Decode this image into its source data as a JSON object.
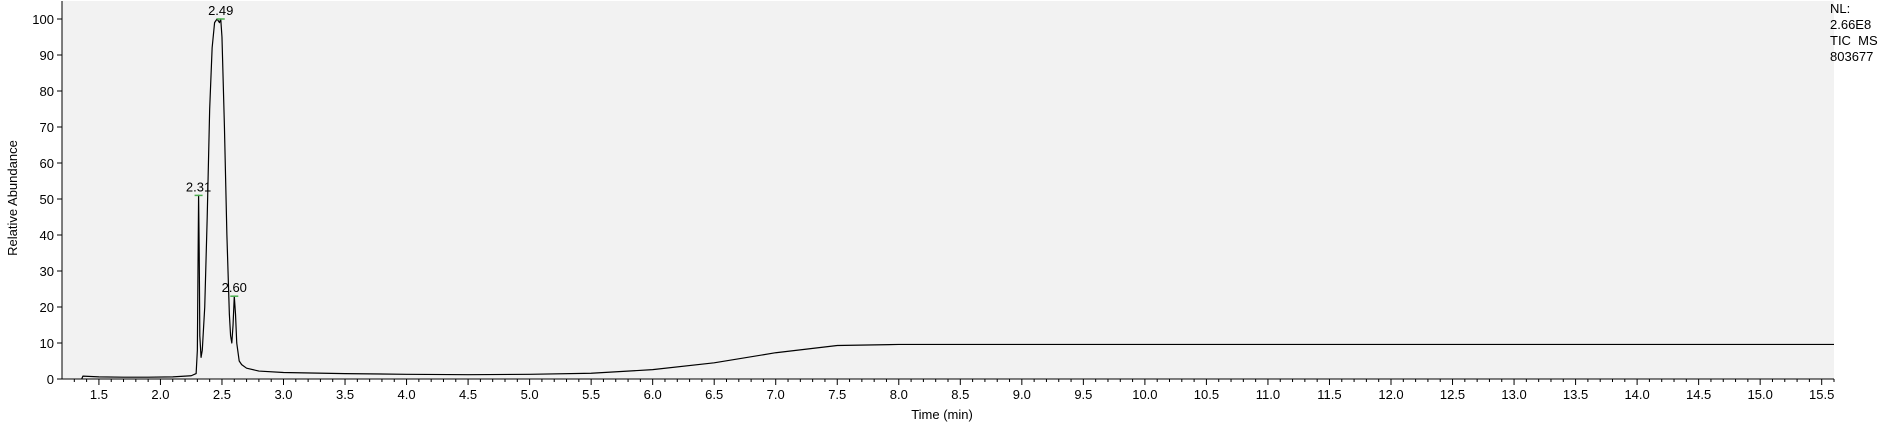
{
  "info": {
    "nl_label": "NL:",
    "nl_value": "2.66E8",
    "scan_filter": "TIC  MS",
    "file_id": "803677"
  },
  "chart_data": {
    "type": "line",
    "title": "",
    "xlabel": "Time (min)",
    "ylabel": "Relative Abundance",
    "xlim": [
      1.2,
      15.6
    ],
    "ylim": [
      0,
      100
    ],
    "grid": false,
    "line_color": "#000000",
    "peak_label_color": "#4caf50",
    "yticks": [
      "0",
      "10",
      "20",
      "30",
      "40",
      "50",
      "60",
      "70",
      "80",
      "90",
      "100"
    ],
    "ytick_values": [
      0,
      10,
      20,
      30,
      40,
      50,
      60,
      70,
      80,
      90,
      100
    ],
    "xticks": [
      "1.5",
      "2.0",
      "2.5",
      "3.0",
      "3.5",
      "4.0",
      "4.5",
      "5.0",
      "5.5",
      "6.0",
      "6.5",
      "7.0",
      "7.5",
      "8.0",
      "8.5",
      "9.0",
      "9.5",
      "10.0",
      "10.5",
      "11.0",
      "11.5",
      "12.0",
      "12.5",
      "13.0",
      "13.5",
      "14.0",
      "14.5",
      "15.0",
      "15.5"
    ],
    "xtick_values": [
      1.5,
      2.0,
      2.5,
      3.0,
      3.5,
      4.0,
      4.5,
      5.0,
      5.5,
      6.0,
      6.5,
      7.0,
      7.5,
      8.0,
      8.5,
      9.0,
      9.5,
      10.0,
      10.5,
      11.0,
      11.5,
      12.0,
      12.5,
      13.0,
      13.5,
      14.0,
      14.5,
      15.0,
      15.5
    ],
    "peaks": [
      {
        "label": "2.31",
        "x": 2.31,
        "y": 51
      },
      {
        "label": "2.49",
        "x": 2.49,
        "y": 100
      },
      {
        "label": "2.60",
        "x": 2.6,
        "y": 23
      }
    ],
    "series": [
      {
        "x": [
          1.36,
          1.37,
          1.5,
          1.7,
          1.9,
          2.1,
          2.25,
          2.29,
          2.3,
          2.305,
          2.31,
          2.315,
          2.32,
          2.33,
          2.34,
          2.36,
          2.38,
          2.4,
          2.42,
          2.44,
          2.46,
          2.48,
          2.49,
          2.5,
          2.52,
          2.54,
          2.56,
          2.57,
          2.58,
          2.59,
          2.6,
          2.61,
          2.62,
          2.64,
          2.66,
          2.7,
          2.8,
          3.0,
          3.5,
          4.0,
          4.5,
          5.0,
          5.5,
          6.0,
          6.5,
          7.0,
          7.5,
          8.0,
          8.5,
          9.0,
          9.5,
          10.0,
          10.5,
          11.0,
          11.5,
          12.0,
          12.5,
          13.0,
          13.5,
          14.0,
          14.5,
          15.0,
          15.5,
          15.6
        ],
        "y": [
          0,
          0.8,
          0.6,
          0.5,
          0.5,
          0.6,
          0.9,
          1.5,
          8,
          30,
          51,
          35,
          12,
          6,
          8,
          20,
          45,
          75,
          92,
          99,
          100,
          99,
          100,
          95,
          70,
          40,
          18,
          12,
          10,
          15,
          23,
          18,
          10,
          5,
          4,
          3,
          2.2,
          1.8,
          1.5,
          1.3,
          1.2,
          1.3,
          1.6,
          2.6,
          4.5,
          7.3,
          9.3,
          9.6,
          9.6,
          9.6,
          9.6,
          9.6,
          9.6,
          9.6,
          9.6,
          9.6,
          9.6,
          9.6,
          9.6,
          9.6,
          9.6,
          9.6,
          9.6,
          9.6
        ]
      }
    ]
  }
}
